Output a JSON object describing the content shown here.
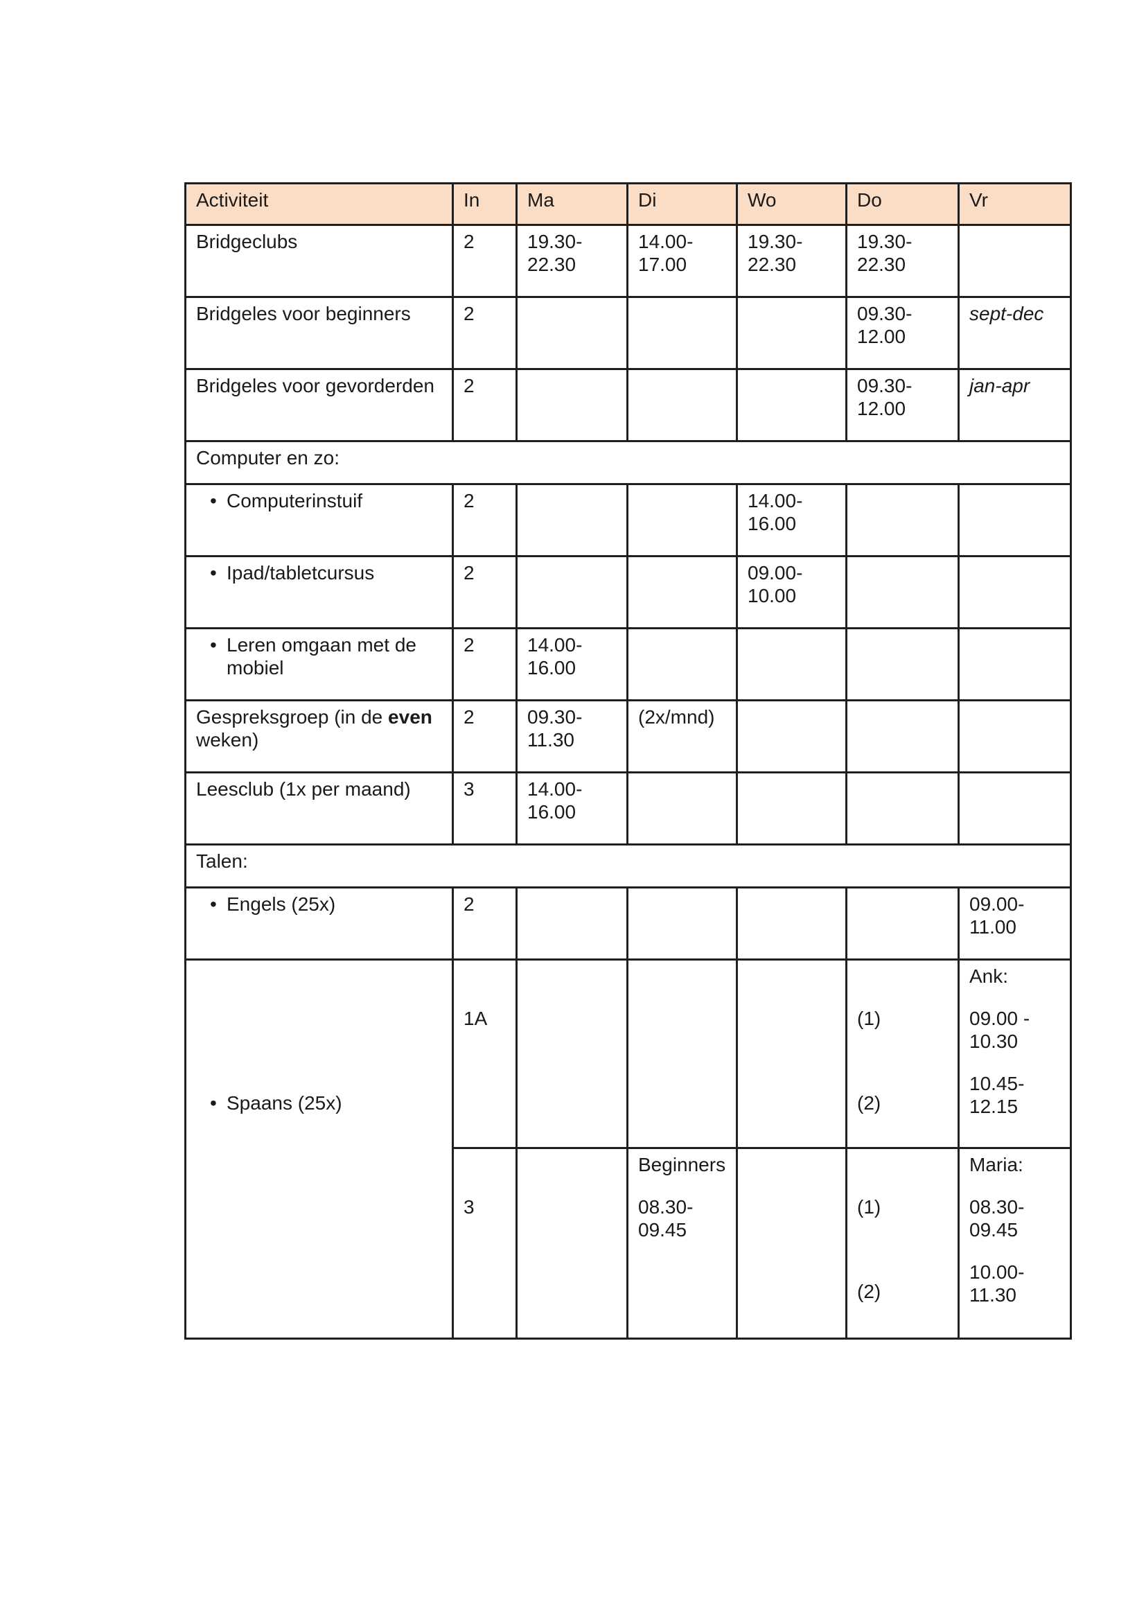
{
  "colors": {
    "header_bg": "#fbdcc5",
    "border": "#1f1f1f",
    "text": "#1a1a1a"
  },
  "table": {
    "columns": [
      {
        "key": "activiteit",
        "label": "Activiteit"
      },
      {
        "key": "in",
        "label": "In"
      },
      {
        "key": "ma",
        "label": "Ma"
      },
      {
        "key": "di",
        "label": "Di"
      },
      {
        "key": "wo",
        "label": "Wo"
      },
      {
        "key": "do",
        "label": "Do"
      },
      {
        "key": "vr",
        "label": "Vr"
      }
    ],
    "rows": [
      {
        "cells": {
          "activiteit": [
            "Bridgeclubs"
          ],
          "in": [
            "2"
          ],
          "ma": [
            "19.30-\n22.30"
          ],
          "di": [
            "14.00-\n17.00"
          ],
          "wo": [
            "19.30-\n22.30"
          ],
          "do": [
            "19.30-\n22.30"
          ]
        }
      },
      {
        "cells": {
          "activiteit": [
            "Bridgeles voor beginners"
          ],
          "in": [
            "2"
          ],
          "do": [
            "09.30-\n12.00"
          ],
          "vr": [
            {
              "text": "sept-dec",
              "italic": true
            }
          ]
        }
      },
      {
        "cells": {
          "activiteit": [
            "Bridgeles voor gevorderden"
          ],
          "in": [
            "2"
          ],
          "do": [
            "09.30-\n12.00"
          ],
          "vr": [
            {
              "text": "jan-apr",
              "italic": true
            }
          ]
        }
      },
      {
        "section": "Computer en zo:"
      },
      {
        "cells": {
          "activiteit": [
            {
              "text": "Computerinstuif",
              "bullet": true
            }
          ],
          "in": [
            "2"
          ],
          "wo": [
            "14.00-\n16.00"
          ]
        }
      },
      {
        "cells": {
          "activiteit": [
            {
              "text": "Ipad/tabletcursus",
              "bullet": true
            }
          ],
          "in": [
            "2"
          ],
          "wo": [
            "09.00-\n10.00"
          ]
        }
      },
      {
        "cells": {
          "activiteit": [
            {
              "text": "Leren omgaan met de\nmobiel",
              "bullet": true
            }
          ],
          "in": [
            "2"
          ],
          "ma": [
            "14.00-\n16.00"
          ]
        }
      },
      {
        "cells": {
          "activiteit": [
            {
              "segments": [
                {
                  "t": "Gespreksgroep (in de "
                },
                {
                  "t": "even",
                  "bold": true
                },
                {
                  "t": "\nweken)"
                }
              ]
            }
          ],
          "in": [
            "2"
          ],
          "ma": [
            "09.30-\n11.30"
          ],
          "di": [
            "(2x/mnd)"
          ]
        }
      },
      {
        "cells": {
          "activiteit": [
            "Leesclub (1x per maand)"
          ],
          "in": [
            "3"
          ],
          "ma": [
            "14.00-\n16.00"
          ]
        }
      },
      {
        "section": "Talen:"
      },
      {
        "cells": {
          "activiteit": [
            {
              "text": "Engels (25x)",
              "bullet": true
            }
          ],
          "in": [
            "2"
          ],
          "vr": [
            "09.00-\n11.00"
          ]
        }
      },
      {
        "kind": "tall-a",
        "cells": {
          "activiteit": {
            "rowspan": 2,
            "paras": [
              "",
              "",
              "",
              {
                "text": "Spaans (25x)",
                "bullet": true
              }
            ]
          },
          "in": [
            "",
            "1A"
          ],
          "do": [
            "",
            "(1)",
            "",
            "(2)"
          ],
          "vr": [
            "Ank:",
            "09.00 -\n10.30",
            "10.45-\n12.15"
          ]
        }
      },
      {
        "kind": "tall-b",
        "cells": {
          "activiteit": null,
          "in": [
            "",
            "3"
          ],
          "di": [
            "Beginners",
            "08.30-\n09.45"
          ],
          "do": [
            "",
            "(1)",
            "",
            "(2)"
          ],
          "vr": [
            "Maria:",
            "08.30-\n09.45",
            "10.00-\n11.30"
          ]
        }
      }
    ]
  }
}
